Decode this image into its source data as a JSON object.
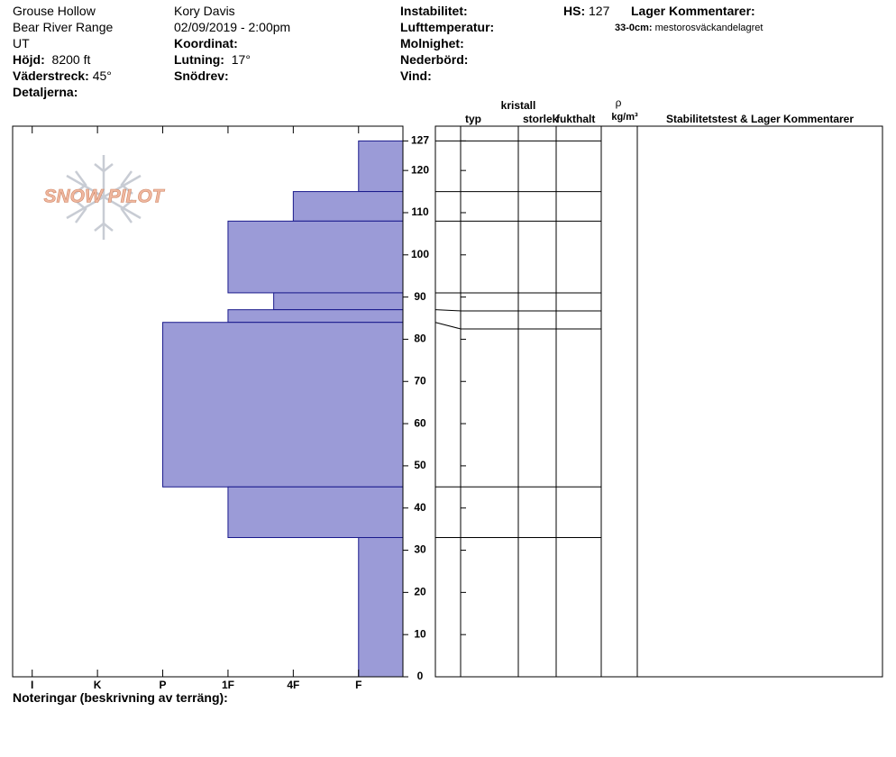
{
  "header": {
    "location": "Grouse Hollow",
    "range": "Bear River Range",
    "state": "UT",
    "elevation_label": "Höjd:",
    "elevation": "8200 ft",
    "aspect_label": "Väderstreck:",
    "aspect": "45°",
    "details_label": "Detaljerna:",
    "observer": "Kory Davis",
    "datetime": "02/09/2019 - 2:00pm",
    "coord_label": "Koordinat:",
    "slope_label": "Lutning:",
    "slope": "17°",
    "wind_loading_label": "Snödrev:",
    "instability_label": "Instabilitet:",
    "air_temp_label": "Lufttemperatur:",
    "sky_label": "Molnighet:",
    "precip_label": "Nederbörd:",
    "wind_label": "Vind:",
    "hs_label": "HS:",
    "hs": 127,
    "layer_comments_label": "Lager Kommentarer:",
    "layer_comments": [
      {
        "range": "33-0cm:",
        "text": "mestorosväckandelagret"
      }
    ]
  },
  "columns": {
    "type": "typ",
    "crystal": "kristall",
    "size": "storlek",
    "moisture": "fukthalt",
    "density_symbol": "ρ",
    "density_unit": "kg/m³",
    "stability": "Stabilitetstest & Lager Kommentarer"
  },
  "logo": "SNOW PILOT",
  "footer": {
    "notes_label": "Noteringar (beskrivning av terräng):"
  },
  "chart_data": {
    "type": "hardness-profile",
    "color": "#9b9bd7",
    "edge_color": "#1a1a8c",
    "layers": [
      {
        "bottom": 115,
        "top": 127,
        "hardness": 1
      },
      {
        "bottom": 108,
        "top": 115,
        "hardness": 2
      },
      {
        "bottom": 91,
        "top": 108,
        "hardness": 3
      },
      {
        "bottom": 87,
        "top": 91,
        "hardness": 2.3
      },
      {
        "bottom": 84,
        "top": 87,
        "hardness": 3
      },
      {
        "bottom": 45,
        "top": 84,
        "hardness": 4
      },
      {
        "bottom": 33,
        "top": 45,
        "hardness": 3
      },
      {
        "bottom": 0,
        "top": 33,
        "hardness": 1
      }
    ],
    "xlim": [
      6.3,
      0.32
    ],
    "xticks": [
      {
        "value": 6,
        "label": "I"
      },
      {
        "value": 5,
        "label": "K"
      },
      {
        "value": 4,
        "label": "P"
      },
      {
        "value": 3,
        "label": "1F"
      },
      {
        "value": 2,
        "label": "4F"
      },
      {
        "value": 1,
        "label": "F"
      }
    ],
    "ylim": [
      0,
      130.5
    ],
    "yticks": [
      0,
      10,
      20,
      30,
      40,
      50,
      60,
      70,
      80,
      90,
      100,
      110,
      120,
      127
    ]
  }
}
